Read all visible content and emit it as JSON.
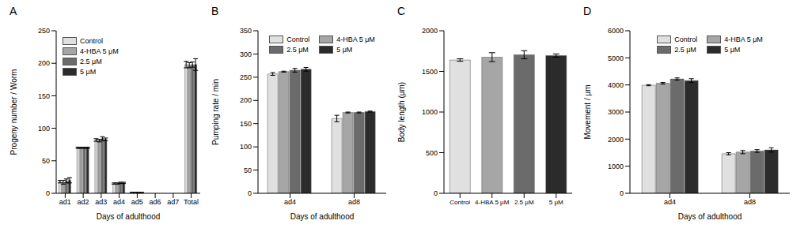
{
  "chart_data": [
    {
      "type": "bar",
      "title": "A",
      "x_label": "Days of adulthood",
      "y_label": "Progeny number / Worm",
      "categories": [
        "ad1",
        "ad2",
        "ad3",
        "ad4",
        "ad5",
        "ad6",
        "ad7",
        "Total"
      ],
      "series": [
        {
          "name": "Control",
          "color": "#e0e0e0",
          "values": [
            18,
            70,
            82,
            15,
            1,
            0,
            0,
            198
          ],
          "errors": [
            2,
            1,
            2,
            1,
            0.5,
            0,
            0,
            5
          ]
        },
        {
          "name": "4-HBA 5 μM",
          "color": "#a6a6a6",
          "values": [
            17,
            70,
            81,
            15,
            1,
            0,
            0,
            197
          ],
          "errors": [
            3,
            1,
            2,
            1,
            0.5,
            0,
            0,
            4
          ]
        },
        {
          "name": "2.5 μM",
          "color": "#6b6b6b",
          "values": [
            19,
            70,
            84,
            16,
            1,
            0,
            0,
            198
          ],
          "errors": [
            3,
            1,
            3,
            1,
            0.5,
            0,
            0,
            4
          ]
        },
        {
          "name": "5 μM",
          "color": "#2b2b2b",
          "values": [
            20,
            70,
            83,
            16,
            1,
            0,
            0,
            198
          ],
          "errors": [
            4,
            1,
            2,
            1,
            0.5,
            0,
            0,
            9
          ]
        }
      ],
      "ylim": [
        0,
        250
      ],
      "yticks": [
        0,
        50,
        100,
        150,
        200,
        250
      ],
      "grid": false,
      "legend": "top-left"
    },
    {
      "type": "bar",
      "title": "B",
      "x_label": "Days of adulthood",
      "y_label": "Pumping rate / min",
      "categories": [
        "ad4",
        "ad8"
      ],
      "series": [
        {
          "name": "Control",
          "color": "#e0e0e0",
          "values": [
            257,
            161
          ],
          "errors": [
            3,
            7
          ]
        },
        {
          "name": "4-HBA 5 μM",
          "color": "#a6a6a6",
          "values": [
            262,
            174
          ],
          "errors": [
            1,
            1
          ]
        },
        {
          "name": "2.5 μM",
          "color": "#6b6b6b",
          "values": [
            265,
            174
          ],
          "errors": [
            4,
            1
          ]
        },
        {
          "name": "5 μM",
          "color": "#2b2b2b",
          "values": [
            267,
            176
          ],
          "errors": [
            4,
            1
          ]
        }
      ],
      "ylim": [
        0,
        350
      ],
      "yticks": [
        0,
        50,
        100,
        150,
        200,
        250,
        300,
        350
      ],
      "grid": false,
      "legend": "top"
    },
    {
      "type": "bar",
      "title": "C",
      "y_label": "Body length (μm)",
      "categories": [
        "Control",
        "4-HBA 5 μM",
        "2.5 μM",
        "5 μM"
      ],
      "values": [
        1640,
        1675,
        1705,
        1695
      ],
      "errors": [
        15,
        55,
        50,
        20
      ],
      "colors": [
        "#e0e0e0",
        "#a6a6a6",
        "#6b6b6b",
        "#2b2b2b"
      ],
      "ylim": [
        0,
        2000
      ],
      "yticks": [
        0,
        500,
        1000,
        1500,
        2000
      ],
      "grid": false
    },
    {
      "type": "bar",
      "title": "D",
      "x_label": "Days of adulthood",
      "y_label": "Movement / μm",
      "categories": [
        "ad4",
        "ad8"
      ],
      "series": [
        {
          "name": "Control",
          "color": "#e0e0e0",
          "values": [
            3990,
            1460
          ],
          "errors": [
            20,
            40
          ]
        },
        {
          "name": "4-HBA 5 μM",
          "color": "#a6a6a6",
          "values": [
            4060,
            1520
          ],
          "errors": [
            30,
            60
          ]
        },
        {
          "name": "2.5 μM",
          "color": "#6b6b6b",
          "values": [
            4220,
            1560
          ],
          "errors": [
            40,
            50
          ]
        },
        {
          "name": "5 μM",
          "color": "#2b2b2b",
          "values": [
            4160,
            1600
          ],
          "errors": [
            70,
            80
          ]
        }
      ],
      "ylim": [
        0,
        6000
      ],
      "yticks": [
        0,
        1000,
        2000,
        3000,
        4000,
        5000,
        6000
      ],
      "grid": false,
      "legend": "top"
    }
  ]
}
